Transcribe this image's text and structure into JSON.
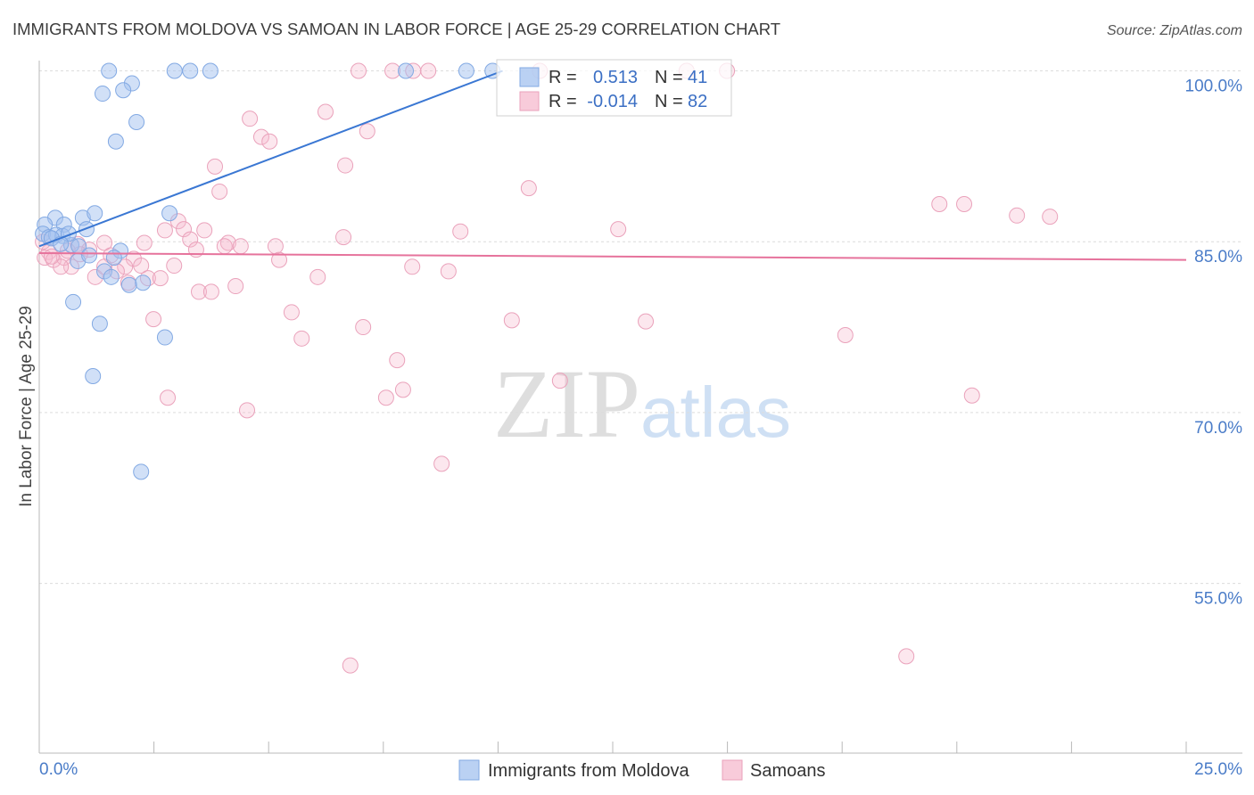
{
  "watermark": {
    "zip": "ZIP",
    "atlas": "atlas"
  },
  "chart_data": {
    "type": "scatter",
    "title": "IMMIGRANTS FROM MOLDOVA VS SAMOAN IN LABOR FORCE | AGE 25-29 CORRELATION CHART",
    "source": "Source: ZipAtlas.com",
    "xlabel": "",
    "ylabel": "In Labor Force | Age 25-29",
    "xlim": [
      0,
      25
    ],
    "ylim": [
      40.1,
      100.9
    ],
    "x_ticks": [
      0,
      2.5,
      5,
      7.5,
      10,
      12.5,
      15,
      17.5,
      20,
      22.5,
      25
    ],
    "x_tick_labels": [
      {
        "value": 0,
        "label": "0.0%"
      },
      {
        "value": 25,
        "label": "25.0%"
      }
    ],
    "y_ticks": [
      {
        "value": 100,
        "label": "100.0%"
      },
      {
        "value": 85,
        "label": "85.0%"
      },
      {
        "value": 70,
        "label": "70.0%"
      },
      {
        "value": 55,
        "label": "55.0%"
      }
    ],
    "grid": true,
    "legend": "bottom",
    "legend_labels": {
      "r": "R =",
      "n": "N ="
    },
    "series": [
      {
        "name": "Immigrants from Moldova",
        "r": "0.513",
        "n": "41",
        "line_color": "#3a77d3",
        "marker_fill": "#a3c1ef",
        "marker_stroke": "#82a9e3",
        "trend": [
          [
            0,
            84.6
          ],
          [
            10.1,
            100
          ]
        ],
        "points": [
          [
            1.52,
            100
          ],
          [
            2.95,
            100
          ],
          [
            3.29,
            100
          ],
          [
            3.73,
            100
          ],
          [
            7.99,
            100
          ],
          [
            9.31,
            100
          ],
          [
            9.88,
            100
          ],
          [
            2.02,
            98.9
          ],
          [
            1.38,
            98.0
          ],
          [
            1.83,
            98.3
          ],
          [
            2.12,
            95.5
          ],
          [
            1.67,
            93.8
          ],
          [
            0.35,
            87.1
          ],
          [
            0.95,
            87.1
          ],
          [
            1.21,
            87.5
          ],
          [
            2.84,
            87.5
          ],
          [
            0.12,
            86.5
          ],
          [
            0.54,
            86.5
          ],
          [
            1.03,
            86.1
          ],
          [
            0.08,
            85.7
          ],
          [
            0.21,
            85.4
          ],
          [
            0.37,
            85.6
          ],
          [
            0.51,
            85.5
          ],
          [
            0.7,
            84.7
          ],
          [
            0.86,
            84.6
          ],
          [
            1.77,
            84.2
          ],
          [
            0.84,
            83.3
          ],
          [
            1.09,
            83.8
          ],
          [
            1.63,
            83.6
          ],
          [
            1.42,
            82.4
          ],
          [
            1.57,
            81.9
          ],
          [
            1.96,
            81.2
          ],
          [
            2.26,
            81.4
          ],
          [
            0.74,
            79.7
          ],
          [
            1.32,
            77.8
          ],
          [
            2.74,
            76.6
          ],
          [
            1.17,
            73.2
          ],
          [
            2.22,
            64.8
          ],
          [
            0.27,
            85.3
          ],
          [
            0.64,
            85.7
          ],
          [
            0.47,
            84.8
          ]
        ]
      },
      {
        "name": "Samoans",
        "r": "-0.014",
        "n": "82",
        "line_color": "#e6739c",
        "marker_fill": "#f6b9cd",
        "marker_stroke": "#eaa2bb",
        "trend": [
          [
            0,
            84.0
          ],
          [
            25,
            83.4
          ]
        ],
        "points": [
          [
            6.96,
            100
          ],
          [
            7.7,
            100
          ],
          [
            8.15,
            100
          ],
          [
            8.48,
            100
          ],
          [
            10.91,
            100
          ],
          [
            14.11,
            100
          ],
          [
            14.99,
            100
          ],
          [
            4.59,
            95.8
          ],
          [
            6.24,
            96.4
          ],
          [
            4.84,
            94.2
          ],
          [
            5.02,
            93.8
          ],
          [
            7.15,
            94.7
          ],
          [
            3.83,
            91.6
          ],
          [
            6.67,
            91.7
          ],
          [
            3.93,
            89.4
          ],
          [
            10.67,
            89.7
          ],
          [
            19.62,
            88.3
          ],
          [
            20.16,
            88.3
          ],
          [
            21.31,
            87.3
          ],
          [
            22.03,
            87.2
          ],
          [
            3.03,
            86.8
          ],
          [
            2.74,
            86.0
          ],
          [
            3.6,
            86.0
          ],
          [
            3.15,
            86.1
          ],
          [
            9.18,
            85.9
          ],
          [
            12.62,
            86.1
          ],
          [
            3.29,
            85.2
          ],
          [
            6.63,
            85.4
          ],
          [
            2.29,
            84.9
          ],
          [
            1.42,
            84.9
          ],
          [
            4.12,
            84.9
          ],
          [
            4.39,
            84.6
          ],
          [
            3.42,
            84.3
          ],
          [
            4.04,
            84.6
          ],
          [
            5.15,
            84.6
          ],
          [
            0.84,
            84.8
          ],
          [
            0.21,
            84.1
          ],
          [
            0.12,
            83.6
          ],
          [
            0.31,
            83.4
          ],
          [
            0.54,
            83.6
          ],
          [
            0.7,
            82.8
          ],
          [
            0.47,
            82.8
          ],
          [
            1.09,
            84.3
          ],
          [
            1.56,
            83.8
          ],
          [
            2.06,
            83.5
          ],
          [
            2.22,
            82.9
          ],
          [
            1.87,
            82.8
          ],
          [
            2.94,
            82.9
          ],
          [
            5.23,
            83.4
          ],
          [
            8.13,
            82.8
          ],
          [
            8.92,
            82.4
          ],
          [
            1.22,
            81.9
          ],
          [
            1.42,
            82.8
          ],
          [
            1.69,
            82.4
          ],
          [
            2.37,
            81.8
          ],
          [
            2.64,
            81.8
          ],
          [
            1.94,
            81.4
          ],
          [
            6.07,
            81.9
          ],
          [
            4.28,
            81.1
          ],
          [
            3.48,
            80.6
          ],
          [
            3.75,
            80.6
          ],
          [
            5.5,
            78.8
          ],
          [
            2.49,
            78.2
          ],
          [
            10.3,
            78.1
          ],
          [
            13.22,
            78.0
          ],
          [
            7.06,
            77.5
          ],
          [
            5.72,
            76.5
          ],
          [
            17.57,
            76.8
          ],
          [
            7.8,
            74.6
          ],
          [
            11.35,
            72.8
          ],
          [
            7.93,
            72.0
          ],
          [
            7.56,
            71.3
          ],
          [
            2.8,
            71.3
          ],
          [
            20.33,
            71.5
          ],
          [
            4.53,
            70.2
          ],
          [
            8.77,
            65.5
          ],
          [
            18.9,
            48.6
          ],
          [
            6.78,
            47.8
          ],
          [
            0.08,
            85.0
          ],
          [
            0.27,
            83.7
          ],
          [
            0.89,
            83.9
          ],
          [
            0.62,
            84.2
          ]
        ]
      }
    ]
  }
}
